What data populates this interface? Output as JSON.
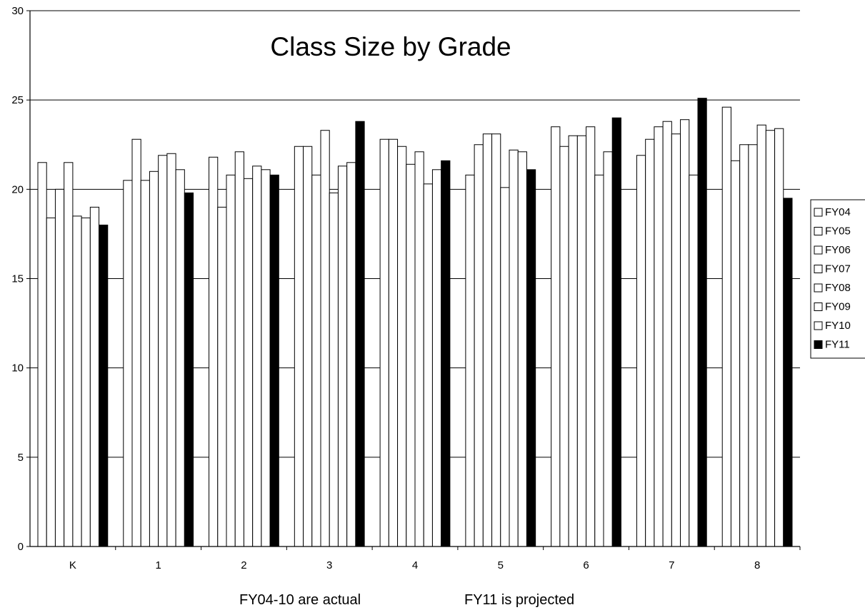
{
  "chart_data": {
    "type": "bar",
    "title": "Class Size by Grade",
    "xlabel": "",
    "ylabel": "",
    "ylim": [
      0,
      30
    ],
    "yticks": [
      0,
      5,
      10,
      15,
      20,
      25,
      30
    ],
    "categories": [
      "K",
      "1",
      "2",
      "3",
      "4",
      "5",
      "6",
      "7",
      "8"
    ],
    "grid": "horizontal",
    "legend_position": "right",
    "series": [
      {
        "name": "FY04",
        "color": "#ffffff",
        "values": [
          21.5,
          20.5,
          21.8,
          22.4,
          22.8,
          20.8,
          23.5,
          21.9,
          24.6
        ]
      },
      {
        "name": "FY05",
        "color": "#ffffff",
        "values": [
          18.4,
          22.8,
          19.0,
          22.4,
          22.8,
          22.5,
          22.4,
          22.8,
          21.6
        ]
      },
      {
        "name": "FY06",
        "color": "#ffffff",
        "values": [
          20.0,
          20.5,
          20.8,
          20.8,
          22.4,
          23.1,
          23.0,
          23.5,
          22.5
        ]
      },
      {
        "name": "FY07",
        "color": "#ffffff",
        "values": [
          21.5,
          21.0,
          22.1,
          23.3,
          21.4,
          23.1,
          23.0,
          23.8,
          22.5
        ]
      },
      {
        "name": "FY08",
        "color": "#ffffff",
        "values": [
          18.5,
          21.9,
          20.6,
          19.8,
          22.1,
          20.1,
          23.5,
          23.1,
          23.6
        ]
      },
      {
        "name": "FY09",
        "color": "#ffffff",
        "values": [
          18.4,
          22.0,
          21.3,
          21.3,
          20.3,
          22.2,
          20.8,
          23.9,
          23.3
        ]
      },
      {
        "name": "FY10",
        "color": "#ffffff",
        "values": [
          19.0,
          21.1,
          21.1,
          21.5,
          21.1,
          22.1,
          22.1,
          20.8,
          23.4
        ]
      },
      {
        "name": "FY11",
        "color": "#000000",
        "values": [
          18.0,
          19.8,
          20.8,
          23.8,
          21.6,
          21.1,
          24.0,
          25.1,
          19.5
        ]
      }
    ]
  },
  "notes": {
    "actual": "FY04-10 are actual",
    "projected": "FY11 is projected"
  }
}
